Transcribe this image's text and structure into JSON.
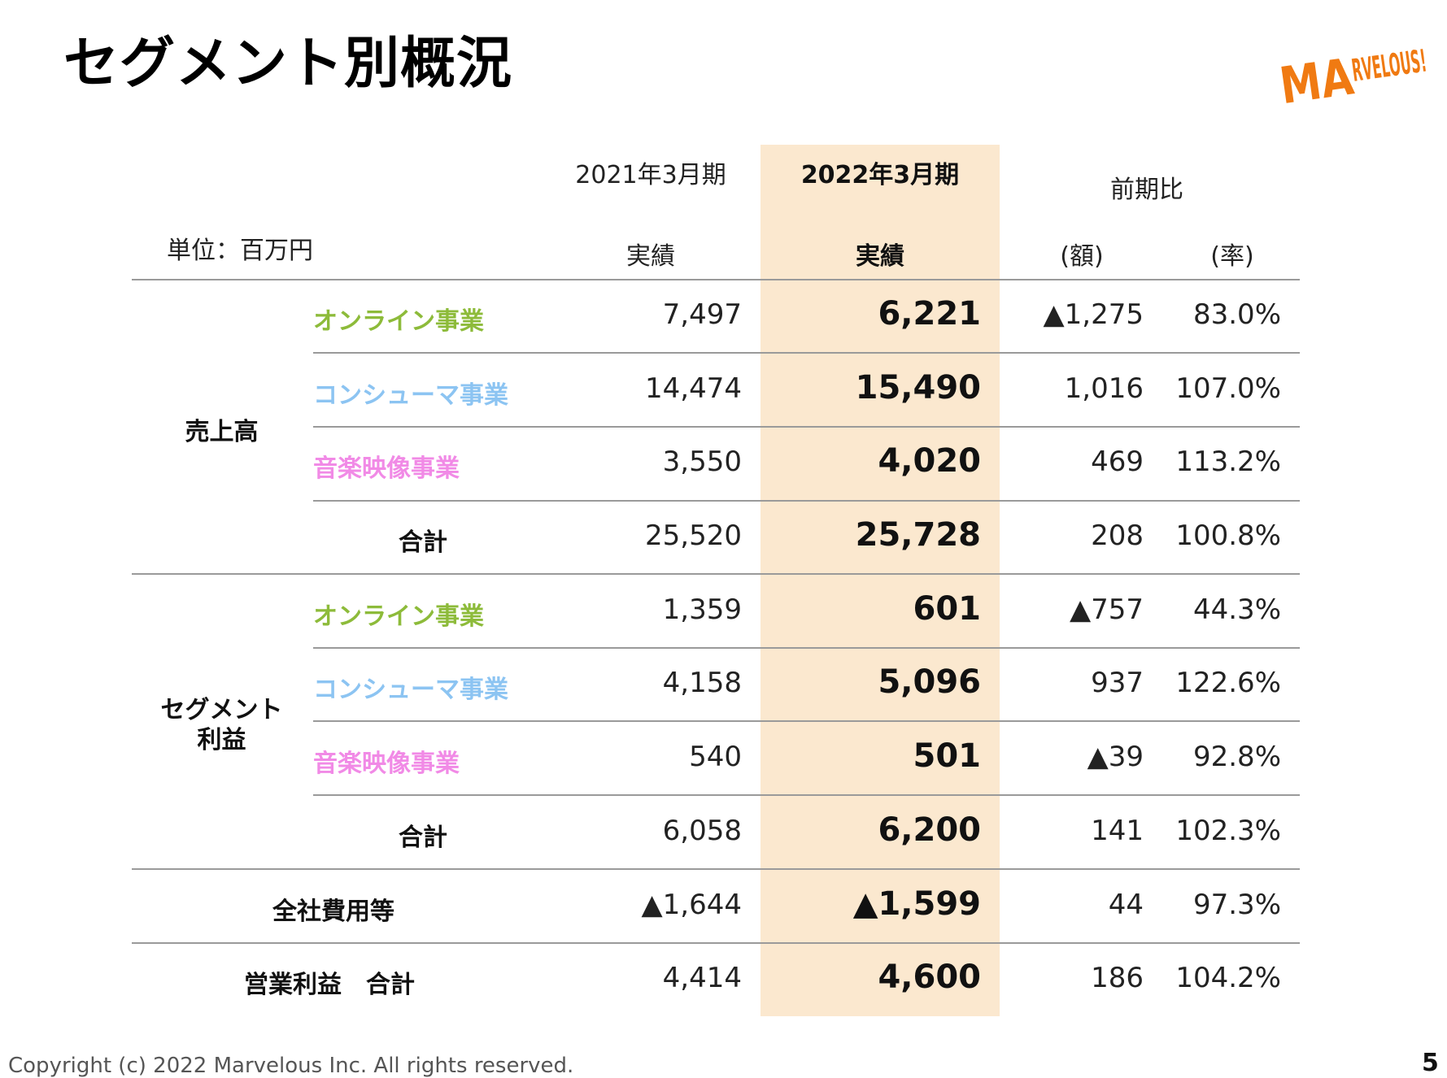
{
  "title": "セグメント別概況",
  "logo_text": "MARVELOUS!",
  "colors": {
    "highlight": "#fbe8cf",
    "online": "#8dbb3a",
    "consumer": "#8cc4f2",
    "music": "#f18ae6",
    "logo": "#f07a12"
  },
  "unit": "単位：百万円",
  "headers": {
    "period_prev": "2021年3月期",
    "period_curr": "2022年3月期",
    "comparison": "前期比",
    "actual_prev": "実績",
    "actual_curr": "実績",
    "diff_amount": "(額)",
    "diff_rate": "(率)"
  },
  "groups": {
    "sales": "売上高",
    "segment_profit_1": "セグメント",
    "segment_profit_2": "利益"
  },
  "rows": [
    {
      "label": "オンライン事業",
      "prev": "7,497",
      "curr": "6,221",
      "diff": "▲1,275",
      "rate": "83.0%"
    },
    {
      "label": "コンシューマ事業",
      "prev": "14,474",
      "curr": "15,490",
      "diff": "1,016",
      "rate": "107.0%"
    },
    {
      "label": "音楽映像事業",
      "prev": "3,550",
      "curr": "4,020",
      "diff": "469",
      "rate": "113.2%"
    },
    {
      "label": "合計",
      "prev": "25,520",
      "curr": "25,728",
      "diff": "208",
      "rate": "100.8%"
    },
    {
      "label": "オンライン事業",
      "prev": "1,359",
      "curr": "601",
      "diff": "▲757",
      "rate": "44.3%"
    },
    {
      "label": "コンシューマ事業",
      "prev": "4,158",
      "curr": "5,096",
      "diff": "937",
      "rate": "122.6%"
    },
    {
      "label": "音楽映像事業",
      "prev": "540",
      "curr": "501",
      "diff": "▲39",
      "rate": "92.8%"
    },
    {
      "label": "合計",
      "prev": "6,058",
      "curr": "6,200",
      "diff": "141",
      "rate": "102.3%"
    },
    {
      "label": "全社費用等",
      "prev": "▲1,644",
      "curr": "▲1,599",
      "diff": "44",
      "rate": "97.3%"
    },
    {
      "label": "営業利益　合計",
      "prev": "4,414",
      "curr": "4,600",
      "diff": "186",
      "rate": "104.2%"
    }
  ],
  "footer": "Copyright (c) 2022 Marvelous Inc. All rights reserved.",
  "page_number": "5"
}
